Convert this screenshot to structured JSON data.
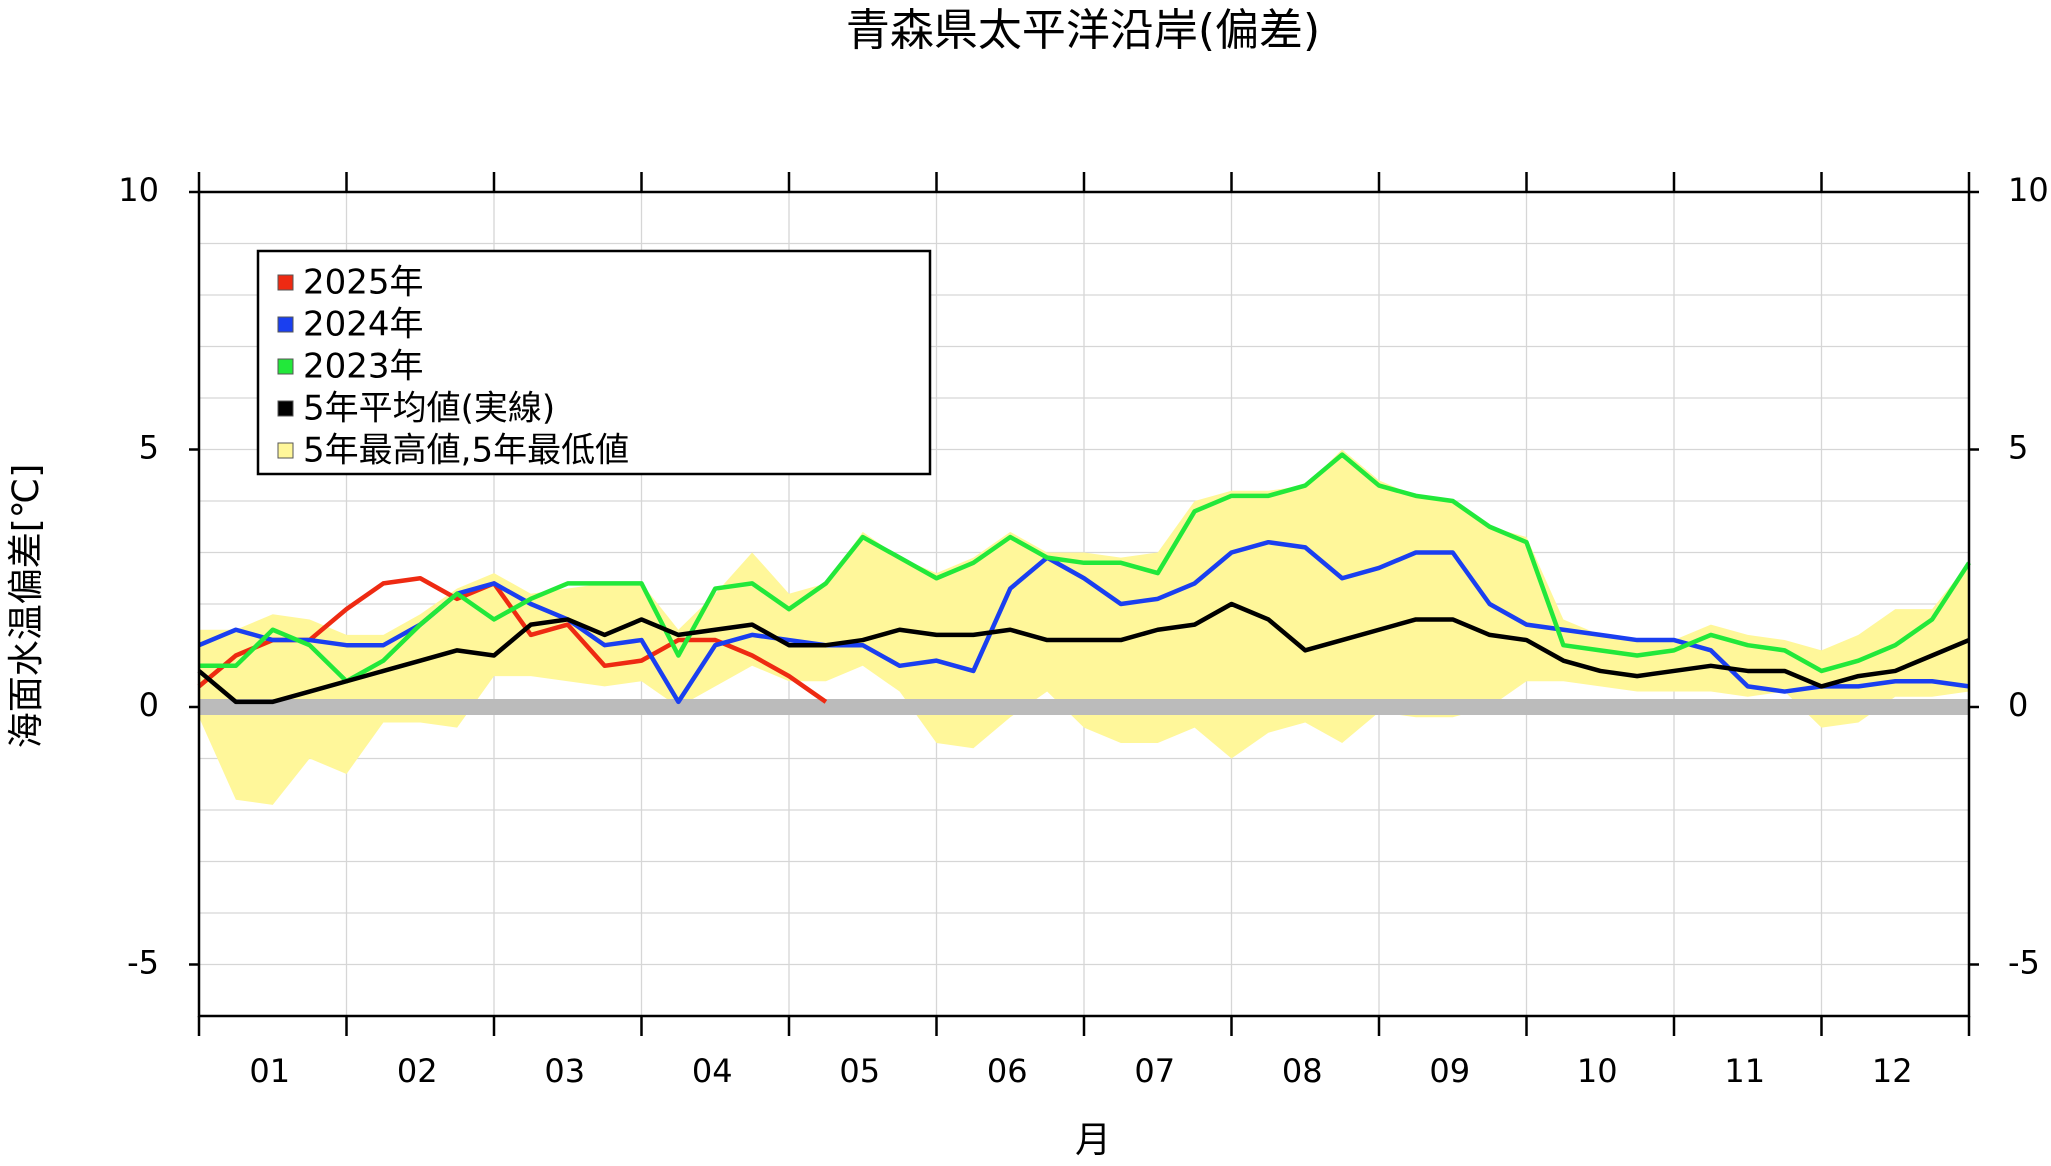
{
  "chart_data": {
    "type": "line",
    "title": "青森県太平洋沿岸(偏差)",
    "ylabel": "海面水温偏差[℃]",
    "xlabel": "月",
    "categories": [
      "01",
      "02",
      "03",
      "04",
      "05",
      "06",
      "07",
      "08",
      "09",
      "10",
      "11",
      "12"
    ],
    "xlim": [
      0,
      12
    ],
    "xticks": [
      0,
      1,
      2,
      3,
      4,
      5,
      6,
      7,
      8,
      9,
      10,
      11,
      12
    ],
    "ylim": [
      -6,
      10
    ],
    "yticks": [
      -5,
      0,
      5,
      10
    ],
    "minor_yticks": [
      -6,
      -5,
      -4,
      -3,
      -2,
      -1,
      0,
      1,
      2,
      3,
      4,
      5,
      6,
      7,
      8,
      9,
      10
    ],
    "grid": true,
    "legend": "upper left",
    "zero_line": {
      "value": 0,
      "color": "#bbbbbb"
    },
    "x": [
      0,
      0.25,
      0.5,
      0.75,
      1,
      1.25,
      1.5,
      1.75,
      2,
      2.25,
      2.5,
      2.75,
      3,
      3.25,
      3.5,
      3.75,
      4,
      4.25,
      4.5,
      4.75,
      5,
      5.25,
      5.5,
      5.75,
      6,
      6.25,
      6.5,
      6.75,
      7,
      7.25,
      7.5,
      7.75,
      8,
      8.25,
      8.5,
      8.75,
      9,
      9.25,
      9.5,
      9.75,
      10,
      10.25,
      10.5,
      10.75,
      11,
      11.25,
      11.5,
      11.75,
      12
    ],
    "band": {
      "name": "5年最高値,5年最低値",
      "color": "#fff79a",
      "upper": [
        1.5,
        1.5,
        1.8,
        1.7,
        1.4,
        1.4,
        1.8,
        2.3,
        2.6,
        2.2,
        2.3,
        2.4,
        2.4,
        1.5,
        2.2,
        3.0,
        2.2,
        2.4,
        3.4,
        2.9,
        2.6,
        2.9,
        3.4,
        3.0,
        3.0,
        2.9,
        3.0,
        4.0,
        4.2,
        4.2,
        4.3,
        5.0,
        4.4,
        4.1,
        4.0,
        3.5,
        3.3,
        1.7,
        1.4,
        1.3,
        1.3,
        1.6,
        1.4,
        1.3,
        1.1,
        1.4,
        1.9,
        1.9,
        2.8
      ],
      "lower": [
        -0.2,
        -1.8,
        -1.9,
        -1.0,
        -1.3,
        -0.3,
        -0.3,
        -0.4,
        0.6,
        0.6,
        0.5,
        0.4,
        0.5,
        0.0,
        0.4,
        0.8,
        0.5,
        0.5,
        0.8,
        0.3,
        -0.7,
        -0.8,
        -0.2,
        0.3,
        -0.4,
        -0.7,
        -0.7,
        -0.4,
        -1.0,
        -0.5,
        -0.3,
        -0.7,
        -0.1,
        -0.2,
        -0.2,
        0.0,
        0.5,
        0.5,
        0.4,
        0.3,
        0.3,
        0.3,
        0.2,
        0.3,
        -0.4,
        -0.3,
        0.2,
        0.2,
        0.3
      ]
    },
    "series": [
      {
        "name": "2025年",
        "color": "#ee2a12",
        "values": [
          0.4,
          1.0,
          1.3,
          1.3,
          1.9,
          2.4,
          2.5,
          2.1,
          2.4,
          1.4,
          1.6,
          0.8,
          0.9,
          1.3,
          1.3,
          1.0,
          0.6,
          0.1,
          null,
          null,
          null,
          null,
          null,
          null,
          null,
          null,
          null,
          null,
          null,
          null,
          null,
          null,
          null,
          null,
          null,
          null,
          null,
          null,
          null,
          null,
          null,
          null,
          null,
          null,
          null,
          null,
          null,
          null,
          null
        ]
      },
      {
        "name": "2024年",
        "color": "#1a3ff0",
        "values": [
          1.2,
          1.5,
          1.3,
          1.3,
          1.2,
          1.2,
          1.6,
          2.2,
          2.4,
          2.0,
          1.7,
          1.2,
          1.3,
          0.1,
          1.2,
          1.4,
          1.3,
          1.2,
          1.2,
          0.8,
          0.9,
          0.7,
          2.3,
          2.9,
          2.5,
          2.0,
          2.1,
          2.4,
          3.0,
          3.2,
          3.1,
          2.5,
          2.7,
          3.0,
          3.0,
          2.0,
          1.6,
          1.5,
          1.4,
          1.3,
          1.3,
          1.1,
          0.4,
          0.3,
          0.4,
          0.4,
          0.5,
          0.5,
          0.4
        ]
      },
      {
        "name": "2023年",
        "color": "#22e83a",
        "values": [
          0.8,
          0.8,
          1.5,
          1.2,
          0.5,
          0.9,
          1.6,
          2.2,
          1.7,
          2.1,
          2.4,
          2.4,
          2.4,
          1.0,
          2.3,
          2.4,
          1.9,
          2.4,
          3.3,
          2.9,
          2.5,
          2.8,
          3.3,
          2.9,
          2.8,
          2.8,
          2.6,
          3.8,
          4.1,
          4.1,
          4.3,
          4.9,
          4.3,
          4.1,
          4.0,
          3.5,
          3.2,
          1.2,
          1.1,
          1.0,
          1.1,
          1.4,
          1.2,
          1.1,
          0.7,
          0.9,
          1.2,
          1.7,
          2.8
        ]
      },
      {
        "name": "5年平均値(実線)",
        "color": "#000000",
        "values": [
          0.7,
          0.1,
          0.1,
          0.3,
          0.5,
          0.7,
          0.9,
          1.1,
          1.0,
          1.6,
          1.7,
          1.4,
          1.7,
          1.4,
          1.5,
          1.6,
          1.2,
          1.2,
          1.3,
          1.5,
          1.4,
          1.4,
          1.5,
          1.3,
          1.3,
          1.3,
          1.5,
          1.6,
          2.0,
          1.7,
          1.1,
          1.3,
          1.5,
          1.7,
          1.7,
          1.4,
          1.3,
          0.9,
          0.7,
          0.6,
          0.7,
          0.8,
          0.7,
          0.7,
          0.4,
          0.6,
          0.7,
          1.0,
          1.3
        ]
      }
    ]
  }
}
